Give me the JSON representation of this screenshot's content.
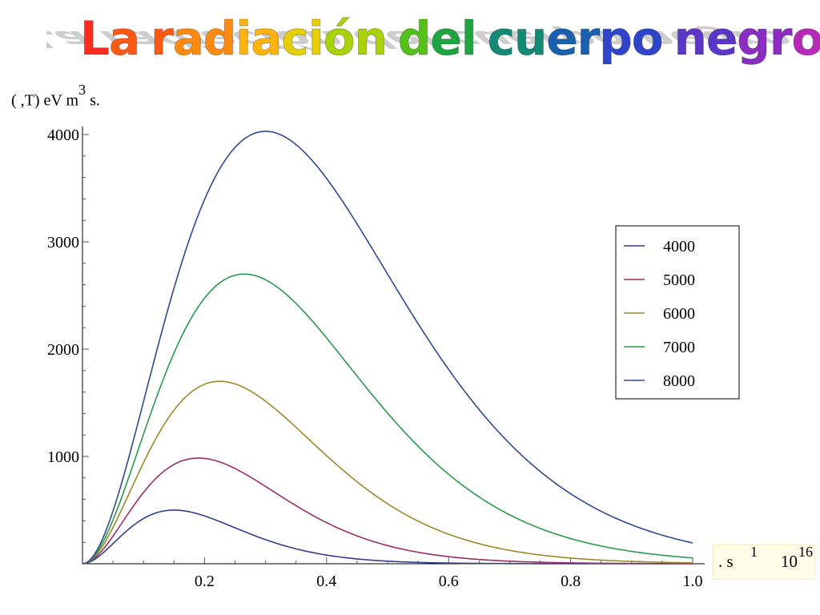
{
  "title": "La radiación del cuerpo negro",
  "title_colors": [
    "#ff2d20",
    "#ff5a14",
    "#ff8a10",
    "#ffb30c",
    "#e4cf08",
    "#a9d20a",
    "#55c01a",
    "#1ea541",
    "#148a76",
    "#1b5fb0",
    "#3046c8",
    "#5a37c8",
    "#8a2dc2",
    "#b52bb8"
  ],
  "y_axis_label": {
    "text": "( ,T) eV m",
    "exp": "3",
    "tail": "s."
  },
  "x_axis_label": {
    "text": ". s",
    "exp": "1",
    "factor": "10",
    "factor_exp": "16"
  },
  "chart_data": {
    "type": "line",
    "title": "La radiación del cuerpo negro",
    "xlabel": "s⁻¹ × 10¹⁶",
    "ylabel": "( ,T) eV m³ s",
    "xlim": [
      0,
      1.0
    ],
    "ylim": [
      0,
      4000
    ],
    "x_ticks": [
      "0.2",
      "0.4",
      "0.6",
      "0.8",
      "1.0"
    ],
    "y_ticks": [
      "1000",
      "2000",
      "3000",
      "4000"
    ],
    "x_tick_values": [
      0.2,
      0.4,
      0.6,
      0.8,
      1.0
    ],
    "y_tick_values": [
      1000,
      2000,
      3000,
      4000
    ],
    "grid": false,
    "legend": "right",
    "series": [
      {
        "name": "4000",
        "color": "#2e3f8f",
        "peak_x": 0.15,
        "peak_y": 500
      },
      {
        "name": "5000",
        "color": "#9a2e6a",
        "peak_x": 0.19,
        "peak_y": 985
      },
      {
        "name": "6000",
        "color": "#9a8a2a",
        "peak_x": 0.225,
        "peak_y": 1700
      },
      {
        "name": "7000",
        "color": "#2a9a4a",
        "peak_x": 0.265,
        "peak_y": 2700
      },
      {
        "name": "8000",
        "color": "#2e4a8f",
        "peak_x": 0.3,
        "peak_y": 4030
      }
    ]
  }
}
